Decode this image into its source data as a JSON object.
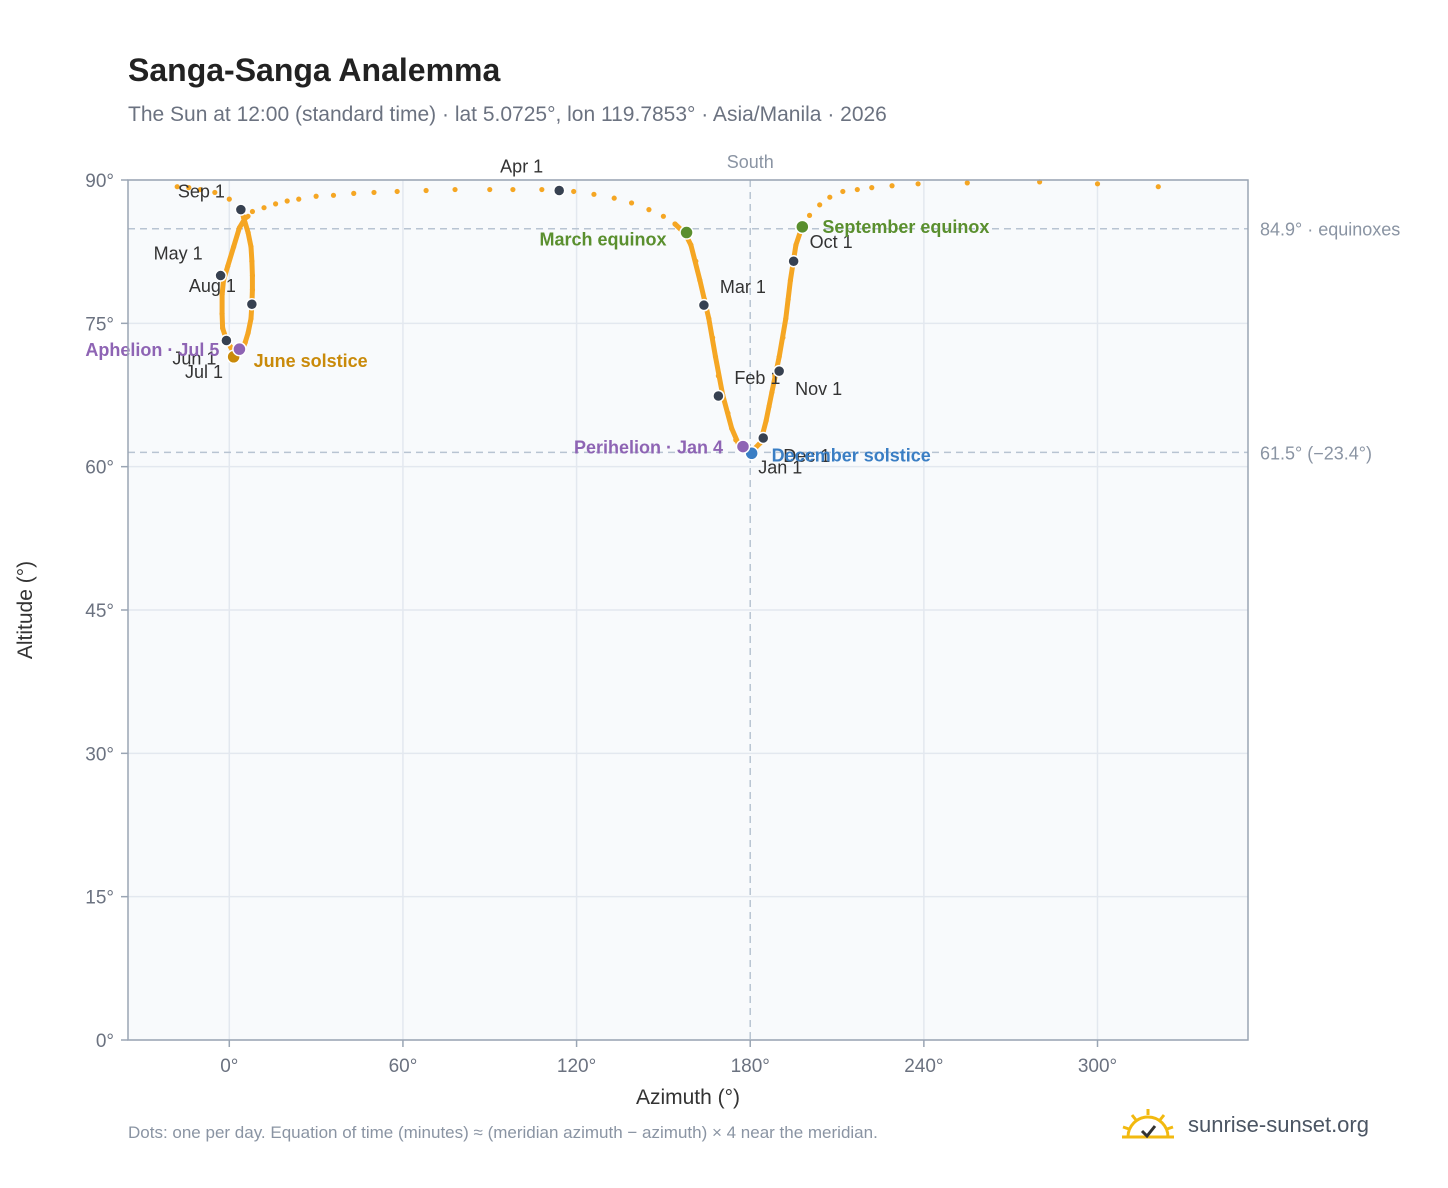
{
  "title": "Sanga-Sanga Analemma",
  "subtitle": "The Sun at 12:00 (standard time) · lat 5.0725°, lon 119.7853° · Asia/Manila · 2026",
  "footnote": "Dots: one per day. Equation of time (minutes) ≈ (meridian azimuth − azimuth) × 4 near the meridian.",
  "brand": {
    "text": "sunrise-sunset.org",
    "logo": "sun-logo-icon"
  },
  "colors": {
    "path": "#f5a623",
    "month_dot": "#374151",
    "equinox": "#5a8f2e",
    "june_solstice": "#c98a0a",
    "december_solstice": "#3a7ec4",
    "apsis": "#8e64b4",
    "reference_line": "#b8c4d2",
    "plot_bg": "#f8fafc",
    "grid": "#e3e8ef"
  },
  "chart_data": {
    "type": "scatter",
    "xlabel": "Azimuth (°)",
    "ylabel": "Altitude (°)",
    "xlim": [
      -35,
      352
    ],
    "ylim": [
      0,
      90
    ],
    "xticks": [
      0,
      60,
      120,
      180,
      240,
      300
    ],
    "xtick_labels": [
      "0°",
      "60°",
      "120°",
      "180°",
      "240°",
      "300°"
    ],
    "yticks": [
      0,
      15,
      30,
      45,
      60,
      75,
      90
    ],
    "ytick_labels": [
      "0°",
      "15°",
      "30°",
      "45°",
      "60°",
      "75°",
      "90°"
    ],
    "grid": true,
    "meridian": {
      "azimuth": 180,
      "label": "South"
    },
    "reference_lines": [
      {
        "altitude": 84.9,
        "label": "84.9° · equinoxes"
      },
      {
        "altitude": 61.5,
        "label": "61.5° (−23.4°)"
      }
    ],
    "daily_path": [
      [
        180.0,
        61.4
      ],
      [
        182.0,
        61.6
      ],
      [
        183.5,
        62.5
      ],
      [
        184.5,
        63.5
      ],
      [
        185.5,
        64.8
      ],
      [
        186.5,
        66.3
      ],
      [
        187.5,
        67.8
      ],
      [
        188.5,
        69.5
      ],
      [
        190.0,
        71.5
      ],
      [
        191.3,
        73.5
      ],
      [
        192.3,
        75.5
      ],
      [
        193.1,
        77.5
      ],
      [
        193.9,
        79.5
      ],
      [
        194.7,
        81.5
      ],
      [
        195.8,
        83.2
      ],
      [
        197.8,
        85.0
      ],
      [
        200.5,
        86.3
      ],
      [
        204.0,
        87.4
      ],
      [
        207.5,
        88.2
      ],
      [
        212.0,
        88.8
      ],
      [
        217.0,
        89.0
      ],
      [
        222.0,
        89.2
      ],
      [
        229.0,
        89.4
      ],
      [
        238.0,
        89.6
      ],
      [
        255.0,
        89.7
      ],
      [
        280.0,
        89.8
      ],
      [
        300.0,
        89.6
      ],
      [
        321.0,
        89.3
      ],
      [
        176.6,
        61.9
      ],
      [
        175.0,
        62.8
      ],
      [
        173.6,
        64.0
      ],
      [
        172.3,
        65.6
      ],
      [
        170.5,
        67.5
      ],
      [
        169.0,
        69.5
      ],
      [
        168.0,
        71.5
      ],
      [
        167.0,
        73.5
      ],
      [
        165.7,
        75.5
      ],
      [
        164.2,
        77.5
      ],
      [
        162.6,
        79.5
      ],
      [
        161.2,
        81.5
      ],
      [
        159.5,
        83.2
      ],
      [
        157.5,
        84.4
      ],
      [
        154.0,
        85.4
      ],
      [
        150.0,
        86.2
      ],
      [
        145.0,
        86.9
      ],
      [
        139.0,
        87.6
      ],
      [
        133.0,
        88.1
      ],
      [
        126.0,
        88.5
      ],
      [
        119.0,
        88.8
      ],
      [
        114.0,
        88.9
      ],
      [
        108.0,
        89.0
      ],
      [
        98.0,
        89.0
      ],
      [
        90.0,
        89.0
      ],
      [
        78.0,
        89.0
      ],
      [
        68.0,
        88.9
      ],
      [
        58.0,
        88.8
      ],
      [
        50.0,
        88.7
      ],
      [
        43.0,
        88.6
      ],
      [
        36.0,
        88.4
      ],
      [
        30.0,
        88.3
      ],
      [
        24.0,
        88.0
      ],
      [
        20.0,
        87.8
      ],
      [
        16.0,
        87.5
      ],
      [
        12.0,
        87.1
      ],
      [
        8.0,
        86.7
      ],
      [
        5.5,
        86.0
      ],
      [
        3.5,
        85.0
      ],
      [
        1.5,
        83.0
      ],
      [
        -0.5,
        81.0
      ],
      [
        -2.0,
        79.5
      ],
      [
        -2.5,
        78.0
      ],
      [
        -2.5,
        76.0
      ],
      [
        -2.3,
        74.5
      ],
      [
        -1.0,
        73.3
      ],
      [
        0.5,
        72.5
      ],
      [
        1.8,
        71.8
      ],
      [
        2.8,
        71.6
      ],
      [
        4.2,
        72.0
      ],
      [
        5.5,
        73.0
      ],
      [
        6.5,
        74.0
      ],
      [
        7.5,
        75.5
      ],
      [
        7.8,
        77.0
      ],
      [
        8.0,
        78.5
      ],
      [
        8.0,
        80.0
      ],
      [
        7.8,
        81.5
      ],
      [
        7.5,
        83.0
      ],
      [
        6.5,
        84.5
      ],
      [
        5.0,
        86.0
      ],
      [
        4.0,
        87.0
      ],
      [
        0.0,
        88.0
      ],
      [
        -5.0,
        88.7
      ],
      [
        -10.0,
        89.0
      ],
      [
        -14.0,
        89.2
      ],
      [
        -18.0,
        89.3
      ]
    ],
    "month_markers": [
      {
        "label": "Jan 1",
        "azimuth": 180.0,
        "altitude": 61.4
      },
      {
        "label": "Feb 1",
        "azimuth": 169.0,
        "altitude": 67.4
      },
      {
        "label": "Mar 1",
        "azimuth": 164.0,
        "altitude": 76.9
      },
      {
        "label": "Apr 1",
        "azimuth": 114.0,
        "altitude": 88.9
      },
      {
        "label": "May 1",
        "azimuth": -3.0,
        "altitude": 80.0
      },
      {
        "label": "Jun 1",
        "azimuth": -1.0,
        "altitude": 73.2
      },
      {
        "label": "Jul 1",
        "azimuth": 2.0,
        "altitude": 71.6
      },
      {
        "label": "Aug 1",
        "azimuth": 7.8,
        "altitude": 77.0
      },
      {
        "label": "Sep 1",
        "azimuth": 4.0,
        "altitude": 86.9
      },
      {
        "label": "Oct 1",
        "azimuth": 195.0,
        "altitude": 81.5
      },
      {
        "label": "Nov 1",
        "azimuth": 190.0,
        "altitude": 70.0
      },
      {
        "label": "Dec 1",
        "azimuth": 184.5,
        "altitude": 63.0
      }
    ],
    "events": [
      {
        "label": "March equinox",
        "azimuth": 158.0,
        "altitude": 84.5,
        "color_key": "equinox"
      },
      {
        "label": "September equinox",
        "azimuth": 198.0,
        "altitude": 85.1,
        "color_key": "equinox"
      },
      {
        "label": "June solstice",
        "azimuth": 1.5,
        "altitude": 71.5,
        "color_key": "june_solstice"
      },
      {
        "label": "December solstice",
        "azimuth": 180.5,
        "altitude": 61.4,
        "color_key": "december_solstice"
      },
      {
        "label": "Aphelion · Jul 5",
        "azimuth": 3.5,
        "altitude": 72.3,
        "color_key": "apsis"
      },
      {
        "label": "Perihelion · Jan 4",
        "azimuth": 177.5,
        "altitude": 62.1,
        "color_key": "apsis"
      }
    ]
  }
}
